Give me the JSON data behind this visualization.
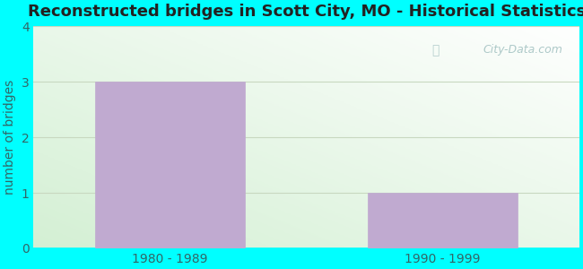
{
  "title": "Reconstructed bridges in Scott City, MO - Historical Statistics",
  "categories": [
    "1980 - 1989",
    "1990 - 1999"
  ],
  "values": [
    3,
    1
  ],
  "bar_color": "#c0aad0",
  "bar_edge_color": "#c0aad0",
  "ylabel": "number of bridges",
  "ylim": [
    0,
    4
  ],
  "yticks": [
    0,
    1,
    2,
    3,
    4
  ],
  "title_fontsize": 13,
  "label_fontsize": 10,
  "tick_fontsize": 10,
  "background_outer": "#00ffff",
  "grid_color": "#c8d8c0",
  "watermark_text": "City-Data.com",
  "title_color": "#222222",
  "axis_label_color": "#336666",
  "tick_label_color": "#336666",
  "bar_width": 0.55
}
